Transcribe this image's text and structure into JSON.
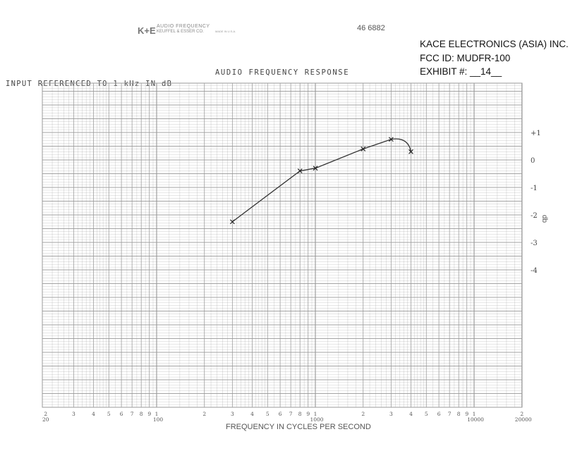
{
  "header": {
    "brand_logo": "K+E",
    "brand_line1": "AUDIO FREQUENCY",
    "brand_line2": "KEUFFEL & ESSER CO.",
    "brand_made": "MADE IN U.S.A.",
    "form_number": "46 6882"
  },
  "fcc_label": {
    "company": "KACE ELECTRONICS (ASIA) INC.",
    "fcc_id": "FCC ID:  MUDFR-100",
    "exhibit": "EXHIBIT #:  __14__"
  },
  "chart_data": {
    "type": "line",
    "title": "AUDIO FREQUENCY RESPONSE",
    "ylabel": "INPUT REFERENCED TO 1 kHz IN dB",
    "ylabel_right": "db",
    "xlabel": "FREQUENCY IN CYCLES PER SECOND",
    "xscale": "log",
    "xlim": [
      20,
      20000
    ],
    "ylim": [
      -9,
      2.8
    ],
    "grid": true,
    "x_tick_labels": [
      {
        "value": 20,
        "label": "2",
        "sub": "20"
      },
      {
        "value": 30,
        "label": "3"
      },
      {
        "value": 40,
        "label": "4"
      },
      {
        "value": 50,
        "label": "5"
      },
      {
        "value": 60,
        "label": "6"
      },
      {
        "value": 70,
        "label": "7"
      },
      {
        "value": 80,
        "label": "8"
      },
      {
        "value": 90,
        "label": "9"
      },
      {
        "value": 100,
        "label": "1",
        "sub": "100"
      },
      {
        "value": 200,
        "label": "2"
      },
      {
        "value": 300,
        "label": "3"
      },
      {
        "value": 400,
        "label": "4"
      },
      {
        "value": 500,
        "label": "5"
      },
      {
        "value": 600,
        "label": "6"
      },
      {
        "value": 700,
        "label": "7"
      },
      {
        "value": 800,
        "label": "8"
      },
      {
        "value": 900,
        "label": "9"
      },
      {
        "value": 1000,
        "label": "1",
        "sub": "1000"
      },
      {
        "value": 2000,
        "label": "2"
      },
      {
        "value": 3000,
        "label": "3"
      },
      {
        "value": 4000,
        "label": "4"
      },
      {
        "value": 5000,
        "label": "5"
      },
      {
        "value": 6000,
        "label": "6"
      },
      {
        "value": 7000,
        "label": "7"
      },
      {
        "value": 8000,
        "label": "8"
      },
      {
        "value": 9000,
        "label": "9"
      },
      {
        "value": 10000,
        "label": "1",
        "sub": "10000"
      },
      {
        "value": 20000,
        "label": "2",
        "sub": "20000"
      }
    ],
    "y_tick_labels": [
      {
        "value": 1,
        "label": "+1"
      },
      {
        "value": 0,
        "label": "0"
      },
      {
        "value": -1,
        "label": "-1"
      },
      {
        "value": -2,
        "label": "-2"
      },
      {
        "value": -3,
        "label": "-3"
      },
      {
        "value": -4,
        "label": "-4"
      }
    ],
    "series": [
      {
        "x": [
          300,
          800,
          1000,
          2000,
          3000,
          4000
        ],
        "y": [
          -2.25,
          -0.4,
          -0.3,
          0.4,
          0.75,
          0.3
        ]
      }
    ],
    "colors": {
      "grid": "#9a9a9a",
      "line": "#333333"
    }
  }
}
